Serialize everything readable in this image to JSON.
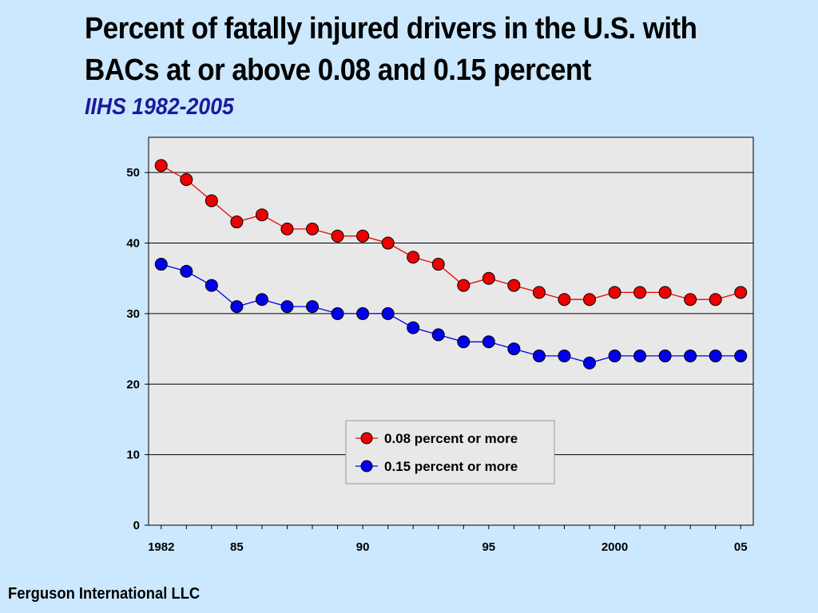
{
  "header": {
    "title": "Percent of fatally injured drivers in the U.S. with BACs at or above 0.08 and 0.15 percent",
    "subtitle": "IIHS 1982-2005"
  },
  "footer": {
    "text": "Ferguson International LLC"
  },
  "chart_data": {
    "type": "line",
    "title": "Percent of fatally injured drivers in the U.S. with BACs at or above 0.08 and 0.15 percent",
    "subtitle": "IIHS 1982-2005",
    "xlabel": "",
    "ylabel": "",
    "x": [
      1982,
      1983,
      1984,
      1985,
      1986,
      1987,
      1988,
      1989,
      1990,
      1991,
      1992,
      1993,
      1994,
      1995,
      1996,
      1997,
      1998,
      1999,
      2000,
      2001,
      2002,
      2003,
      2004,
      2005
    ],
    "xlim": [
      1981.5,
      2005.5
    ],
    "ylim": [
      0,
      55
    ],
    "y_ticks": [
      0,
      10,
      20,
      30,
      40,
      50
    ],
    "x_ticks": [
      {
        "value": 1982,
        "label": "1982"
      },
      {
        "value": 1985,
        "label": "85"
      },
      {
        "value": 1990,
        "label": "90"
      },
      {
        "value": 1995,
        "label": "95"
      },
      {
        "value": 2000,
        "label": "2000"
      },
      {
        "value": 2005,
        "label": "05"
      }
    ],
    "grid": true,
    "legend_position": "lower-center",
    "series": [
      {
        "name": "0.08 percent or more",
        "color": "#ee0000",
        "values": [
          51,
          49,
          46,
          43,
          44,
          42,
          42,
          41,
          41,
          40,
          38,
          37,
          34,
          35,
          34,
          33,
          32,
          32,
          33,
          33,
          33,
          32,
          32,
          33
        ]
      },
      {
        "name": "0.15 percent or more",
        "color": "#0000ee",
        "values": [
          37,
          36,
          34,
          31,
          32,
          31,
          31,
          30,
          30,
          30,
          28,
          27,
          26,
          26,
          25,
          24,
          24,
          23,
          24,
          24,
          24,
          24,
          24,
          24
        ]
      }
    ]
  }
}
